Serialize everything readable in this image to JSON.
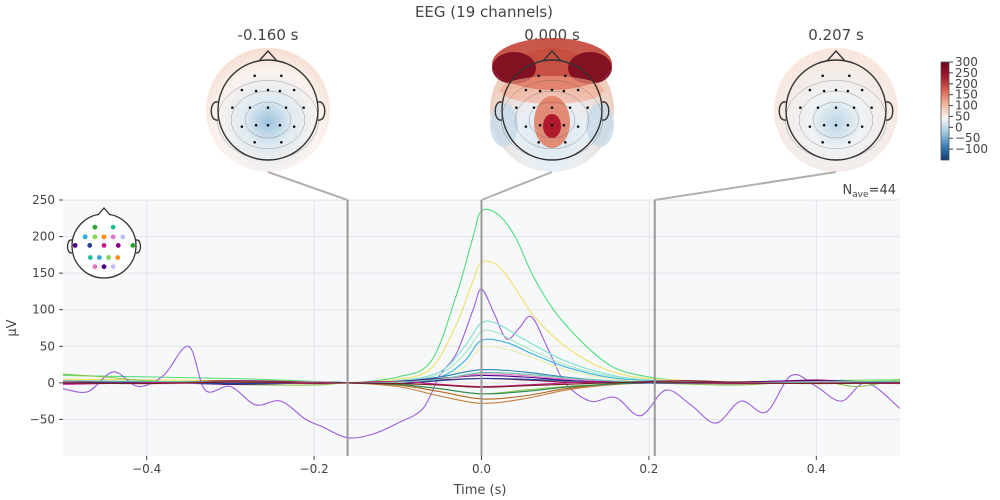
{
  "chart_data": {
    "type": "line",
    "title": "EEG (19 channels)",
    "xlabel": "Time (s)",
    "ylabel": "µV",
    "xlim": [
      -0.5,
      0.5
    ],
    "ylim": [
      -100,
      250
    ],
    "x_ticks": [
      -0.4,
      -0.2,
      0.0,
      0.2,
      0.4
    ],
    "x_tick_labels": [
      "−0.4",
      "−0.2",
      "0.0",
      "0.2",
      "0.4"
    ],
    "y_ticks": [
      -50,
      0,
      50,
      100,
      150,
      200,
      250
    ],
    "y_tick_labels": [
      "−50",
      "0",
      "50",
      "100",
      "150",
      "200",
      "250"
    ],
    "grid": true,
    "annotation": {
      "prefix": "N",
      "subscript": "ave",
      "suffix": "=44"
    },
    "marker_times": [
      -0.16,
      0.0,
      0.207
    ],
    "topomaps": [
      {
        "label": "-0.160 s",
        "time": -0.16
      },
      {
        "label": "0.000 s",
        "time": 0.0
      },
      {
        "label": "0.207 s",
        "time": 0.207
      }
    ],
    "colorbar": {
      "range": [
        -150,
        300
      ],
      "ticks": [
        300,
        250,
        200,
        150,
        100,
        50,
        0,
        -50,
        -100
      ],
      "tick_labels": [
        "300",
        "250",
        "200",
        "150",
        "100",
        "50",
        "0",
        "−50",
        "−100"
      ],
      "colors": [
        "#0d3a6b",
        "#3b7fb9",
        "#a6cde2",
        "#f7f7f7",
        "#f4b59a",
        "#d6604d",
        "#a2172b",
        "#67001f"
      ]
    },
    "sensor_legend_colors": [
      "#2ca02c",
      "#1fc0a0",
      "#33aadd",
      "#7ed957",
      "#ff8c1a",
      "#e377c2",
      "#c0c0ff",
      "#4b0082",
      "#1f3d99",
      "#c71585",
      "#8b008b"
    ],
    "series": [
      {
        "color": "#4ede7a",
        "x": [
          -0.5,
          -0.3,
          -0.2,
          -0.16,
          -0.1,
          -0.06,
          -0.03,
          -0.01,
          0.0,
          0.02,
          0.04,
          0.06,
          0.08,
          0.1,
          0.13,
          0.16,
          0.2,
          0.25,
          0.3,
          0.4,
          0.5
        ],
        "y": [
          10,
          6,
          2,
          0,
          8,
          30,
          120,
          200,
          235,
          230,
          200,
          150,
          110,
          80,
          45,
          20,
          8,
          2,
          0,
          3,
          4
        ]
      },
      {
        "color": "#f0e06a",
        "x": [
          -0.5,
          -0.3,
          -0.2,
          -0.16,
          -0.1,
          -0.06,
          -0.03,
          -0.01,
          0.0,
          0.02,
          0.04,
          0.06,
          0.08,
          0.1,
          0.13,
          0.16,
          0.2,
          0.3,
          0.5
        ],
        "y": [
          5,
          3,
          1,
          0,
          5,
          20,
          80,
          140,
          165,
          160,
          130,
          95,
          70,
          50,
          28,
          14,
          6,
          2,
          3
        ]
      },
      {
        "color": "#9a5ddd",
        "x": [
          -0.5,
          -0.47,
          -0.44,
          -0.41,
          -0.38,
          -0.35,
          -0.33,
          -0.3,
          -0.27,
          -0.24,
          -0.21,
          -0.19,
          -0.16,
          -0.13,
          -0.1,
          -0.07,
          -0.05,
          -0.03,
          -0.01,
          0.0,
          0.015,
          0.03,
          0.045,
          0.06,
          0.08,
          0.1,
          0.13,
          0.16,
          0.19,
          0.22,
          0.25,
          0.28,
          0.31,
          0.34,
          0.37,
          0.4,
          0.43,
          0.46,
          0.5
        ],
        "y": [
          -8,
          -12,
          15,
          -5,
          10,
          50,
          -10,
          -5,
          -30,
          -25,
          -50,
          -60,
          -75,
          -70,
          -55,
          -35,
          10,
          40,
          100,
          128,
          95,
          60,
          75,
          90,
          45,
          0,
          -25,
          -20,
          -45,
          -10,
          -30,
          -55,
          -25,
          -40,
          10,
          -5,
          -25,
          0,
          -35
        ]
      },
      {
        "color": "#7fe0d0",
        "x": [
          -0.5,
          -0.2,
          -0.16,
          -0.1,
          -0.05,
          -0.02,
          0.0,
          0.02,
          0.05,
          0.1,
          0.15,
          0.2,
          0.3,
          0.5
        ],
        "y": [
          2,
          1,
          0,
          3,
          15,
          50,
          82,
          80,
          60,
          30,
          12,
          4,
          1,
          2
        ]
      },
      {
        "color": "#a8e8c0",
        "x": [
          -0.5,
          -0.2,
          -0.16,
          -0.1,
          -0.05,
          -0.02,
          0.0,
          0.02,
          0.05,
          0.1,
          0.15,
          0.2,
          0.3,
          0.5
        ],
        "y": [
          1,
          0,
          0,
          2,
          12,
          40,
          70,
          68,
          50,
          25,
          10,
          3,
          0,
          1
        ]
      },
      {
        "color": "#3bb0e0",
        "x": [
          -0.5,
          -0.2,
          -0.16,
          -0.1,
          -0.05,
          -0.02,
          0.0,
          0.03,
          0.06,
          0.1,
          0.15,
          0.2,
          0.3,
          0.5
        ],
        "y": [
          2,
          1,
          0,
          2,
          8,
          30,
          58,
          55,
          40,
          22,
          8,
          3,
          1,
          2
        ]
      },
      {
        "color": "#e8f0b0",
        "x": [
          -0.5,
          -0.2,
          -0.16,
          -0.1,
          -0.05,
          -0.02,
          0.0,
          0.03,
          0.06,
          0.1,
          0.15,
          0.2,
          0.3,
          0.5
        ],
        "y": [
          1,
          0,
          0,
          1,
          6,
          22,
          48,
          46,
          35,
          18,
          6,
          2,
          0,
          1
        ]
      },
      {
        "color": "#2c7fb8",
        "x": [
          -0.5,
          -0.2,
          -0.16,
          -0.1,
          -0.05,
          0.0,
          0.05,
          0.1,
          0.15,
          0.2,
          0.3,
          0.5
        ],
        "y": [
          0,
          1,
          0,
          2,
          8,
          18,
          15,
          8,
          3,
          1,
          0,
          1
        ]
      },
      {
        "color": "#8bc34a",
        "x": [
          -0.5,
          -0.45,
          -0.4,
          -0.3,
          -0.2,
          -0.16,
          -0.1,
          -0.05,
          0.0,
          0.05,
          0.1,
          0.15,
          0.2,
          0.3,
          0.4,
          0.45,
          0.5
        ],
        "y": [
          12,
          8,
          3,
          -2,
          -3,
          0,
          -3,
          -8,
          -15,
          -10,
          -5,
          -2,
          0,
          -3,
          2,
          -5,
          5
        ]
      },
      {
        "color": "#c0803a",
        "x": [
          -0.5,
          -0.3,
          -0.2,
          -0.16,
          -0.1,
          -0.05,
          0.0,
          0.05,
          0.1,
          0.15,
          0.2,
          0.3,
          0.5
        ],
        "y": [
          0,
          1,
          0,
          0,
          -5,
          -18,
          -28,
          -22,
          -10,
          -3,
          0,
          1,
          0
        ]
      },
      {
        "color": "#b5651d",
        "x": [
          -0.5,
          -0.3,
          -0.2,
          -0.16,
          -0.1,
          -0.05,
          0.0,
          0.05,
          0.1,
          0.15,
          0.2,
          0.3,
          0.5
        ],
        "y": [
          1,
          0,
          1,
          0,
          -3,
          -12,
          -22,
          -18,
          -8,
          -2,
          0,
          0,
          1
        ]
      },
      {
        "color": "#2e8b57",
        "x": [
          -0.5,
          -0.3,
          -0.2,
          -0.16,
          -0.1,
          -0.05,
          0.0,
          0.05,
          0.1,
          0.15,
          0.2,
          0.3,
          0.5
        ],
        "y": [
          0,
          0,
          1,
          0,
          -2,
          -8,
          -15,
          -12,
          -6,
          -2,
          0,
          1,
          0
        ]
      },
      {
        "color": "#8b1a4a",
        "x": [
          -0.5,
          -0.4,
          -0.3,
          -0.2,
          -0.16,
          -0.1,
          -0.05,
          0.0,
          0.05,
          0.1,
          0.15,
          0.2,
          0.25,
          0.3,
          0.35,
          0.4,
          0.45,
          0.5
        ],
        "y": [
          2,
          0,
          3,
          1,
          0,
          1,
          4,
          6,
          4,
          1,
          0,
          2,
          3,
          1,
          2,
          4,
          1,
          0
        ]
      },
      {
        "color": "#4b0082",
        "x": [
          -0.5,
          -0.4,
          -0.3,
          -0.2,
          -0.16,
          -0.1,
          -0.05,
          0.0,
          0.05,
          0.1,
          0.15,
          0.2,
          0.3,
          0.4,
          0.5
        ],
        "y": [
          -1,
          1,
          -2,
          0,
          0,
          2,
          6,
          10,
          8,
          4,
          2,
          0,
          1,
          3,
          0
        ]
      },
      {
        "color": "#e377c2",
        "x": [
          -0.5,
          -0.4,
          -0.3,
          -0.2,
          -0.16,
          -0.1,
          -0.05,
          0.0,
          0.05,
          0.1,
          0.15,
          0.2,
          0.3,
          0.4,
          0.5
        ],
        "y": [
          1,
          -1,
          0,
          1,
          0,
          1,
          5,
          12,
          10,
          5,
          2,
          1,
          0,
          2,
          1
        ]
      },
      {
        "color": "#1f3d99",
        "x": [
          -0.5,
          -0.4,
          -0.3,
          -0.2,
          -0.16,
          -0.1,
          -0.05,
          0.0,
          0.05,
          0.1,
          0.15,
          0.2,
          0.3,
          0.4,
          0.5
        ],
        "y": [
          0,
          1,
          -1,
          0,
          0,
          -1,
          3,
          6,
          5,
          3,
          1,
          0,
          -1,
          1,
          0
        ]
      },
      {
        "color": "#c71585",
        "x": [
          -0.5,
          -0.4,
          -0.3,
          -0.2,
          -0.16,
          -0.1,
          -0.05,
          0.0,
          0.05,
          0.1,
          0.15,
          0.2,
          0.3,
          0.4,
          0.5
        ],
        "y": [
          -2,
          0,
          1,
          -1,
          0,
          2,
          -2,
          -5,
          -3,
          0,
          2,
          1,
          -1,
          0,
          -1
        ]
      },
      {
        "color": "#66c2a5",
        "x": [
          -0.5,
          -0.4,
          -0.3,
          -0.2,
          -0.16,
          -0.1,
          -0.05,
          0.0,
          0.05,
          0.1,
          0.15,
          0.2,
          0.3,
          0.4,
          0.5
        ],
        "y": [
          3,
          2,
          1,
          0,
          0,
          1,
          5,
          14,
          12,
          7,
          3,
          1,
          0,
          1,
          2
        ]
      },
      {
        "color": "#7a1f1f",
        "x": [
          -0.5,
          -0.4,
          -0.3,
          -0.2,
          -0.16,
          -0.1,
          -0.05,
          0.0,
          0.05,
          0.1,
          0.15,
          0.2,
          0.3,
          0.4,
          0.5
        ],
        "y": [
          0,
          -1,
          1,
          0,
          0,
          -1,
          -3,
          -6,
          -4,
          -2,
          0,
          1,
          0,
          -1,
          0
        ]
      }
    ]
  }
}
